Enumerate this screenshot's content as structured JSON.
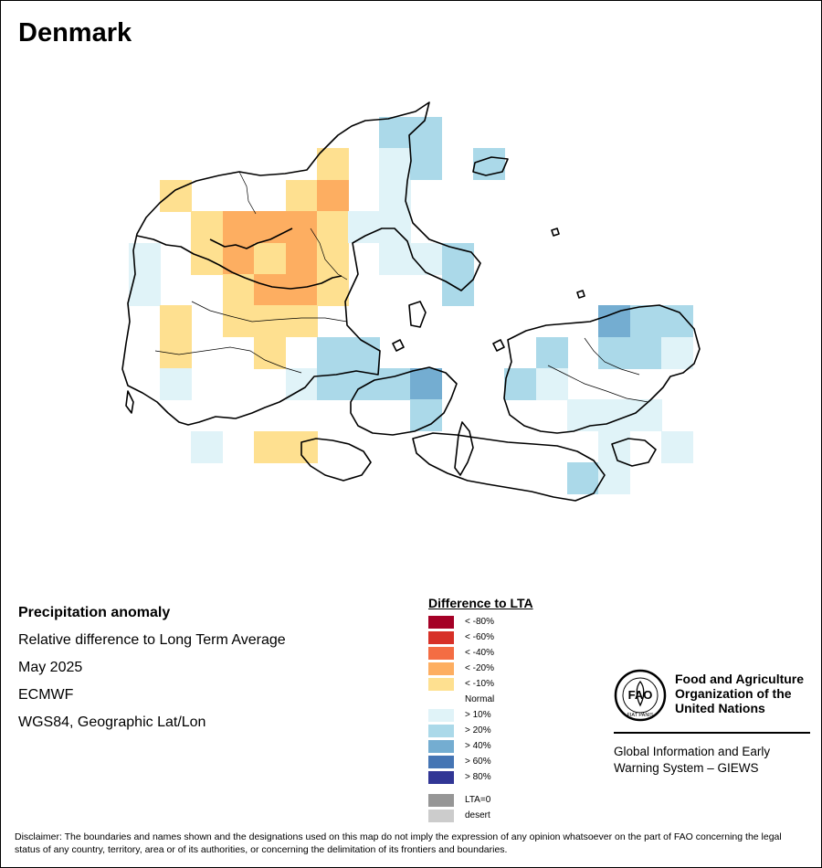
{
  "title": "Denmark",
  "info": {
    "line1": "Precipitation anomaly",
    "line2": "Relative difference to Long Term Average",
    "line3": "May 2025",
    "line4": "ECMWF",
    "line5": "WGS84, Geographic Lat/Lon"
  },
  "legend": {
    "title": "Difference to LTA",
    "items": [
      {
        "label": "< -80%",
        "color": "#a50026"
      },
      {
        "label": "< -60%",
        "color": "#d73027"
      },
      {
        "label": "< -40%",
        "color": "#f46d43"
      },
      {
        "label": "< -20%",
        "color": "#fdae61"
      },
      {
        "label": "< -10%",
        "color": "#fee090"
      },
      {
        "label": "Normal",
        "color": "#ffffff"
      },
      {
        "label": "> 10%",
        "color": "#e0f3f8"
      },
      {
        "label": "> 20%",
        "color": "#abd9e9"
      },
      {
        "label": "> 40%",
        "color": "#74add1"
      },
      {
        "label": "> 60%",
        "color": "#4575b4"
      },
      {
        "label": "> 80%",
        "color": "#313695"
      }
    ],
    "extra": [
      {
        "label": "LTA=0",
        "color": "#969696"
      },
      {
        "label": "desert",
        "color": "#cccccc"
      }
    ]
  },
  "org": {
    "name": "Food and Agriculture Organization of the United Nations",
    "logo_text": "FAO",
    "logo_motto": "FIAT PANIS",
    "system": "Global Information and Early Warning System – GIEWS"
  },
  "disclaimer": "Disclaimer: The boundaries and names shown and the designations used on this map do not imply the expression of any opinion whatsoever on the part of FAO concerning the legal status of any country, territory, area or of its authorities, or concerning the delimitation of its frontiers and boundaries.",
  "grid_cells": [
    [
      "> 20%",
      415,
      128
    ],
    [
      "> 20%",
      449,
      128
    ],
    [
      "< -10%",
      347,
      162
    ],
    [
      "> 10%",
      415,
      162
    ],
    [
      "> 20%",
      449,
      162
    ],
    [
      "> 20%",
      518,
      162
    ],
    [
      "< -10%",
      175,
      197
    ],
    [
      "< -10%",
      313,
      197
    ],
    [
      "< -20%",
      347,
      197
    ],
    [
      "> 10%",
      415,
      197
    ],
    [
      "< -10%",
      209,
      231
    ],
    [
      "< -20%",
      244,
      231
    ],
    [
      "< -20%",
      278,
      231
    ],
    [
      "< -20%",
      313,
      231
    ],
    [
      "< -10%",
      347,
      231
    ],
    [
      "> 10%",
      381,
      231
    ],
    [
      "> 10%",
      415,
      231
    ],
    [
      "> 10%",
      141,
      266
    ],
    [
      "< -10%",
      209,
      266
    ],
    [
      "< -20%",
      244,
      266
    ],
    [
      "< -10%",
      278,
      266
    ],
    [
      "< -20%",
      313,
      266
    ],
    [
      "< -10%",
      347,
      266
    ],
    [
      "> 10%",
      415,
      266
    ],
    [
      "> 10%",
      449,
      266
    ],
    [
      "> 20%",
      484,
      266
    ],
    [
      "> 10%",
      141,
      300
    ],
    [
      "< -10%",
      244,
      300
    ],
    [
      "< -20%",
      278,
      300
    ],
    [
      "< -20%",
      313,
      300
    ],
    [
      "< -10%",
      347,
      300
    ],
    [
      "> 20%",
      484,
      300
    ],
    [
      "< -10%",
      175,
      334
    ],
    [
      "< -10%",
      244,
      334
    ],
    [
      "< -10%",
      278,
      334
    ],
    [
      "< -10%",
      313,
      334
    ],
    [
      "> 40%",
      655,
      334
    ],
    [
      "> 20%",
      690,
      334
    ],
    [
      "> 20%",
      724,
      334
    ],
    [
      "< -10%",
      175,
      369
    ],
    [
      "< -10%",
      278,
      369
    ],
    [
      "> 20%",
      347,
      369
    ],
    [
      "> 20%",
      381,
      369
    ],
    [
      "> 20%",
      587,
      369
    ],
    [
      "> 20%",
      655,
      369
    ],
    [
      "> 20%",
      690,
      369
    ],
    [
      "> 10%",
      724,
      369
    ],
    [
      "> 10%",
      175,
      403
    ],
    [
      "> 10%",
      313,
      403
    ],
    [
      "> 20%",
      347,
      403
    ],
    [
      "> 20%",
      381,
      403
    ],
    [
      "> 20%",
      415,
      403
    ],
    [
      "> 40%",
      449,
      403
    ],
    [
      "> 20%",
      552,
      403
    ],
    [
      "> 10%",
      587,
      403
    ],
    [
      "> 20%",
      449,
      437
    ],
    [
      "> 10%",
      621,
      437
    ],
    [
      "> 10%",
      655,
      437
    ],
    [
      "> 10%",
      690,
      437
    ],
    [
      "> 10%",
      209,
      472
    ],
    [
      "< -10%",
      278,
      472
    ],
    [
      "< -10%",
      313,
      472
    ],
    [
      "> 10%",
      655,
      472
    ],
    [
      "> 10%",
      724,
      472
    ],
    [
      "> 20%",
      621,
      506
    ],
    [
      "> 10%",
      655,
      506
    ]
  ]
}
